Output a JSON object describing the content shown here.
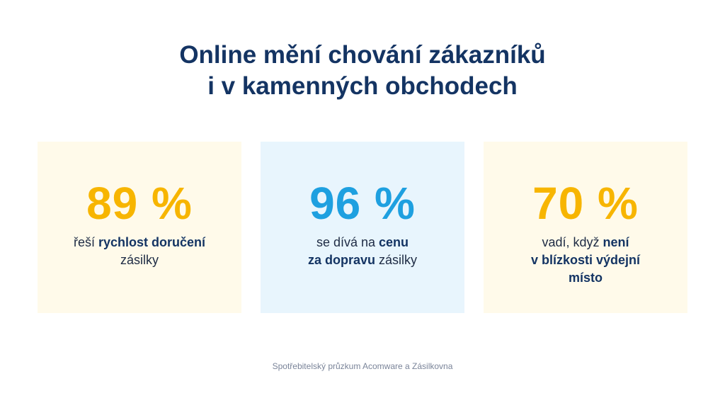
{
  "title": {
    "line1": "Online mění chování zákazníků",
    "line2": "i v kamenných obchodech"
  },
  "colors": {
    "title": "#143463",
    "yellow_accent": "#f7b500",
    "blue_accent": "#1ea0e0",
    "yellow_card_bg": "#fffaea",
    "blue_card_bg": "#e8f5fd"
  },
  "cards": [
    {
      "stat": "89 %",
      "lines": [
        [
          {
            "t": "řeší ",
            "b": false
          },
          {
            "t": "rychlost doručení",
            "b": true
          }
        ],
        [
          {
            "t": "zásilky",
            "b": false
          }
        ]
      ]
    },
    {
      "stat": "96 %",
      "lines": [
        [
          {
            "t": "se dívá na ",
            "b": false
          },
          {
            "t": "cenu",
            "b": true
          }
        ],
        [
          {
            "t": "za dopravu",
            "b": true
          },
          {
            "t": " zásilky",
            "b": false
          }
        ]
      ]
    },
    {
      "stat": "70 %",
      "lines": [
        [
          {
            "t": "vadí, když ",
            "b": false
          },
          {
            "t": "není",
            "b": true
          }
        ],
        [
          {
            "t": "v blízkosti výdejní",
            "b": true
          }
        ],
        [
          {
            "t": "místo",
            "b": true
          }
        ]
      ]
    }
  ],
  "source": "Spotřebitelský průzkum Acomware a Zásilkovna"
}
